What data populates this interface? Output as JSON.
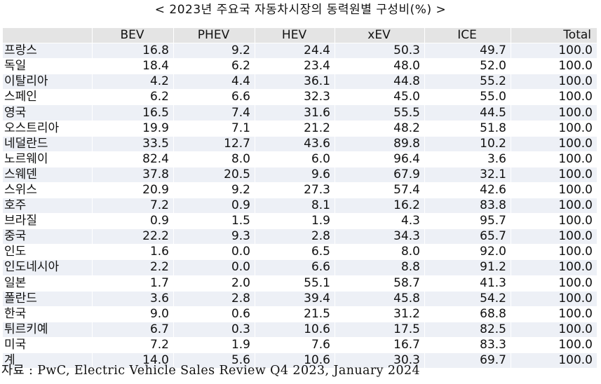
{
  "title": "< 2023년 주요국 자동차시장의 동력원별 구성비(%) >",
  "columns": [
    "",
    "BEV",
    "PHEV",
    "HEV",
    "xEV",
    "ICE",
    "Total"
  ],
  "rows": [
    {
      "country": "프랑스",
      "bev": "16.8",
      "phev": "9.2",
      "hev": "24.4",
      "xev": "50.3",
      "ice": "49.7",
      "total": "100.0"
    },
    {
      "country": "독일",
      "bev": "18.4",
      "phev": "6.2",
      "hev": "23.4",
      "xev": "48.0",
      "ice": "52.0",
      "total": "100.0"
    },
    {
      "country": "이탈리아",
      "bev": "4.2",
      "phev": "4.4",
      "hev": "36.1",
      "xev": "44.8",
      "ice": "55.2",
      "total": "100.0"
    },
    {
      "country": "스페인",
      "bev": "6.2",
      "phev": "6.6",
      "hev": "32.3",
      "xev": "45.0",
      "ice": "55.0",
      "total": "100.0"
    },
    {
      "country": "영국",
      "bev": "16.5",
      "phev": "7.4",
      "hev": "31.6",
      "xev": "55.5",
      "ice": "44.5",
      "total": "100.0"
    },
    {
      "country": "오스트리아",
      "bev": "19.9",
      "phev": "7.1",
      "hev": "21.2",
      "xev": "48.2",
      "ice": "51.8",
      "total": "100.0"
    },
    {
      "country": "네덜란드",
      "bev": "33.5",
      "phev": "12.7",
      "hev": "43.6",
      "xev": "89.8",
      "ice": "10.2",
      "total": "100.0"
    },
    {
      "country": "노르웨이",
      "bev": "82.4",
      "phev": "8.0",
      "hev": "6.0",
      "xev": "96.4",
      "ice": "3.6",
      "total": "100.0"
    },
    {
      "country": "스웨덴",
      "bev": "37.8",
      "phev": "20.5",
      "hev": "9.6",
      "xev": "67.9",
      "ice": "32.1",
      "total": "100.0"
    },
    {
      "country": "스위스",
      "bev": "20.9",
      "phev": "9.2",
      "hev": "27.3",
      "xev": "57.4",
      "ice": "42.6",
      "total": "100.0"
    },
    {
      "country": "호주",
      "bev": "7.2",
      "phev": "0.9",
      "hev": "8.1",
      "xev": "16.2",
      "ice": "83.8",
      "total": "100.0"
    },
    {
      "country": "브라질",
      "bev": "0.9",
      "phev": "1.5",
      "hev": "1.9",
      "xev": "4.3",
      "ice": "95.7",
      "total": "100.0"
    },
    {
      "country": "중국",
      "bev": "22.2",
      "phev": "9.3",
      "hev": "2.8",
      "xev": "34.3",
      "ice": "65.7",
      "total": "100.0"
    },
    {
      "country": "인도",
      "bev": "1.6",
      "phev": "0.0",
      "hev": "6.5",
      "xev": "8.0",
      "ice": "92.0",
      "total": "100.0"
    },
    {
      "country": "인도네시아",
      "bev": "2.2",
      "phev": "0.0",
      "hev": "6.6",
      "xev": "8.8",
      "ice": "91.2",
      "total": "100.0"
    },
    {
      "country": "일본",
      "bev": "1.7",
      "phev": "2.0",
      "hev": "55.1",
      "xev": "58.7",
      "ice": "41.3",
      "total": "100.0"
    },
    {
      "country": "폴란드",
      "bev": "3.6",
      "phev": "2.8",
      "hev": "39.4",
      "xev": "45.8",
      "ice": "54.2",
      "total": "100.0"
    },
    {
      "country": "한국",
      "bev": "9.0",
      "phev": "0.6",
      "hev": "21.5",
      "xev": "31.2",
      "ice": "68.8",
      "total": "100.0"
    },
    {
      "country": "튀르키예",
      "bev": "6.7",
      "phev": "0.3",
      "hev": "10.6",
      "xev": "17.5",
      "ice": "82.5",
      "total": "100.0"
    },
    {
      "country": "미국",
      "bev": "7.2",
      "phev": "1.9",
      "hev": "7.6",
      "xev": "16.7",
      "ice": "83.3",
      "total": "100.0"
    },
    {
      "country": "계",
      "bev": "14.0",
      "phev": "5.6",
      "hev": "10.6",
      "xev": "30.3",
      "ice": "69.7",
      "total": "100.0"
    }
  ],
  "source": "자료 : PwC, Electric Vehicle Sales Review Q4 2023, January 2024"
}
